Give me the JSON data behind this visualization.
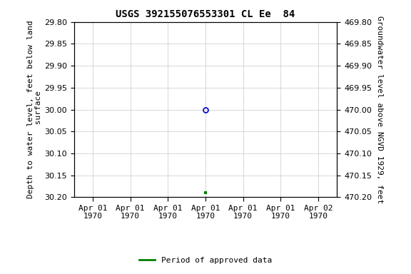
{
  "title": "USGS 392155076553301 CL Ee  84",
  "ylabel_left": "Depth to water level, feet below land\n surface",
  "ylabel_right": "Groundwater level above NGVD 1929, feet",
  "ylim_left": [
    29.8,
    30.2
  ],
  "ylim_right": [
    470.2,
    469.8
  ],
  "yticks_left": [
    29.8,
    29.85,
    29.9,
    29.95,
    30.0,
    30.05,
    30.1,
    30.15,
    30.2
  ],
  "yticks_right": [
    470.2,
    470.15,
    470.1,
    470.05,
    470.0,
    469.95,
    469.9,
    469.85,
    469.8
  ],
  "point_open_x_days": 3,
  "point_open_y": 30.0,
  "point_filled_x_days": 3,
  "point_filled_y": 30.19,
  "open_marker_color": "#0000cc",
  "filled_marker_color": "#008000",
  "background_color": "#ffffff",
  "grid_color": "#c8c8c8",
  "title_fontsize": 10,
  "axis_label_fontsize": 8,
  "tick_fontsize": 8,
  "legend_label": "Period of approved data",
  "legend_color": "#008000",
  "x_tick_days": [
    0,
    1,
    2,
    3,
    4,
    5,
    6
  ],
  "x_tick_labels": [
    "Apr 01\n1970",
    "Apr 01\n1970",
    "Apr 01\n1970",
    "Apr 01\n1970",
    "Apr 01\n1970",
    "Apr 01\n1970",
    "Apr 02\n1970"
  ]
}
